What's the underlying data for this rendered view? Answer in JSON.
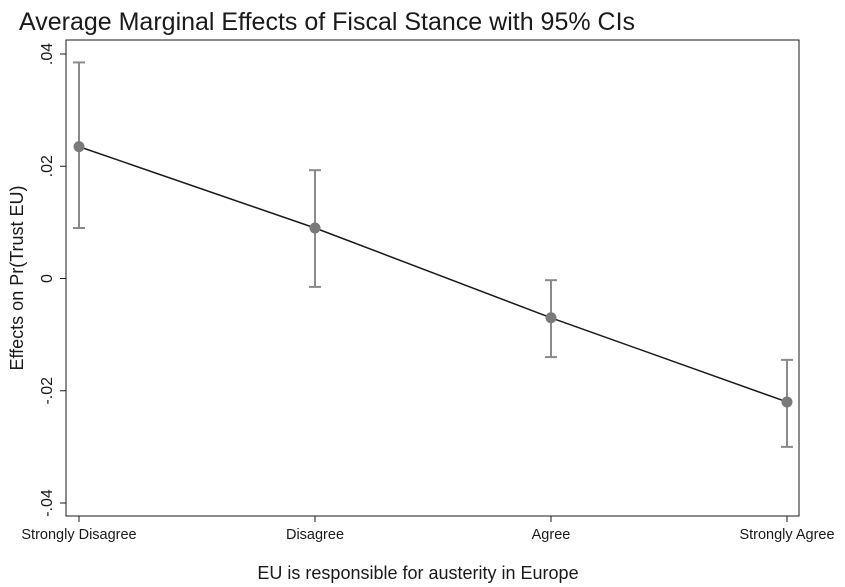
{
  "chart_data": {
    "type": "line",
    "title": "Average Marginal Effects of Fiscal Stance with 95% CIs",
    "xlabel": "EU is responsible for austerity in Europe",
    "ylabel": "Effects on Pr(Trust EU)",
    "categories": [
      "Strongly Disagree",
      "Disagree",
      "Agree",
      "Strongly Agree"
    ],
    "ylim": [
      -0.04,
      0.04
    ],
    "yticks": [
      0.04,
      0.02,
      0,
      -0.02,
      -0.04
    ],
    "ytick_labels": [
      ".04",
      ".02",
      "0",
      "-.02",
      "-.04"
    ],
    "grid": false,
    "legend": "none",
    "series": [
      {
        "values": [
          0.0235,
          0.009,
          -0.007,
          -0.022
        ],
        "ci_lower": [
          0.009,
          -0.0015,
          -0.014,
          -0.03
        ],
        "ci_upper": [
          0.0385,
          0.0193,
          -0.0003,
          -0.0145
        ]
      }
    ],
    "colors": {
      "line": "#1a1a1a",
      "marker": "#7a7a7a",
      "ci": "#8a8a8a",
      "frame": "#1a1a1a"
    }
  }
}
